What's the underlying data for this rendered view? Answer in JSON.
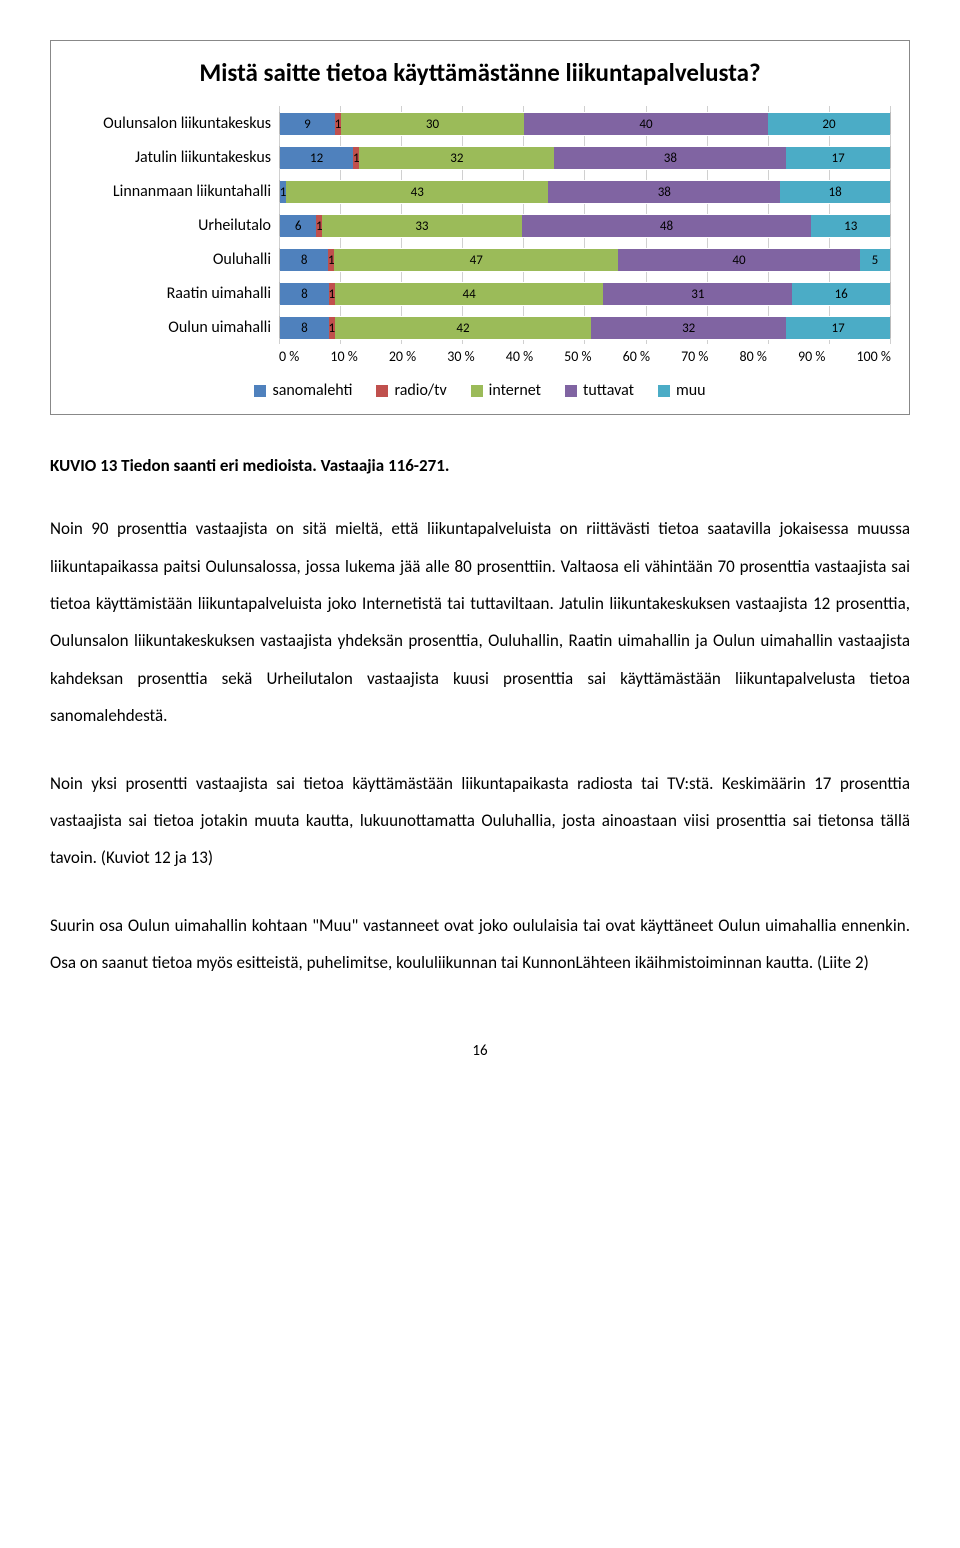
{
  "chart": {
    "title": "Mistä saitte tietoa käyttämästänne liikuntapalvelusta?",
    "categories": [
      {
        "label": "Oulunsalon liikuntakeskus",
        "values": [
          9,
          1,
          30,
          40,
          20
        ]
      },
      {
        "label": "Jatulin liikuntakeskus",
        "values": [
          12,
          1,
          32,
          38,
          17
        ]
      },
      {
        "label": "Linnanmaan liikuntahalli",
        "values": [
          1,
          0,
          43,
          38,
          18
        ]
      },
      {
        "label": "Urheilutalo",
        "values": [
          6,
          1,
          33,
          48,
          13
        ]
      },
      {
        "label": "Ouluhalli",
        "values": [
          8,
          1,
          47,
          40,
          5
        ]
      },
      {
        "label": "Raatin uimahalli",
        "values": [
          8,
          1,
          44,
          31,
          16
        ]
      },
      {
        "label": "Oulun uimahalli",
        "values": [
          8,
          1,
          42,
          32,
          17
        ]
      }
    ],
    "series_colors": [
      "#4f81bd",
      "#c0504d",
      "#9bbb59",
      "#8064a2",
      "#4bacc6"
    ],
    "series_labels": [
      "sanomalehti",
      "radio/tv",
      "internet",
      "tuttavat",
      "muu"
    ],
    "axis_ticks": [
      "0 %",
      "10 %",
      "20 %",
      "30 %",
      "40 %",
      "50 %",
      "60 %",
      "70 %",
      "80 %",
      "90 %",
      "100 %"
    ],
    "background_color": "#ffffff",
    "grid_color": "#d0d0d0",
    "label_fontsize": 16,
    "value_fontsize": 13,
    "title_fontsize": 25
  },
  "caption": "KUVIO 13 Tiedon saanti eri medioista. Vastaajia 116-271.",
  "paragraphs": {
    "p1": "Noin 90 prosenttia vastaajista on sitä mieltä, että liikuntapalveluista on riittävästi tietoa saatavilla jokaisessa muussa liikuntapaikassa paitsi Oulunsalossa, jossa lukema jää alle 80 prosenttiin. Valtaosa eli vähintään 70 prosenttia vastaajista sai tietoa käyttämistään liikuntapalveluista joko Internetistä tai tuttaviltaan. Jatulin liikuntakeskuksen vastaajista 12 prosenttia, Oulunsalon liikuntakeskuksen vastaajista yhdeksän prosenttia, Ouluhallin, Raatin uimahallin ja Oulun uimahallin vastaajista kahdeksan prosenttia sekä Urheilutalon vastaajista kuusi prosenttia sai käyttämästään liikuntapalvelusta tietoa sanomalehdestä.",
    "p2": "Noin yksi prosentti vastaajista sai tietoa käyttämästään liikuntapaikasta radiosta tai TV:stä. Keskimäärin 17 prosenttia vastaajista sai tietoa jotakin muuta kautta, lukuunottamatta Ouluhallia, josta ainoastaan viisi prosenttia sai tietonsa tällä tavoin. (Kuviot 12 ja 13)",
    "p3": "Suurin osa Oulun uimahallin kohtaan \"Muu\" vastanneet ovat joko oululaisia tai ovat käyttäneet Oulun uimahallia ennenkin. Osa on saanut tietoa myös esitteistä, puhelimitse, koululiikunnan tai KunnonLähteen ikäihmistoiminnan kautta. (Liite 2)"
  },
  "page_number": "16"
}
